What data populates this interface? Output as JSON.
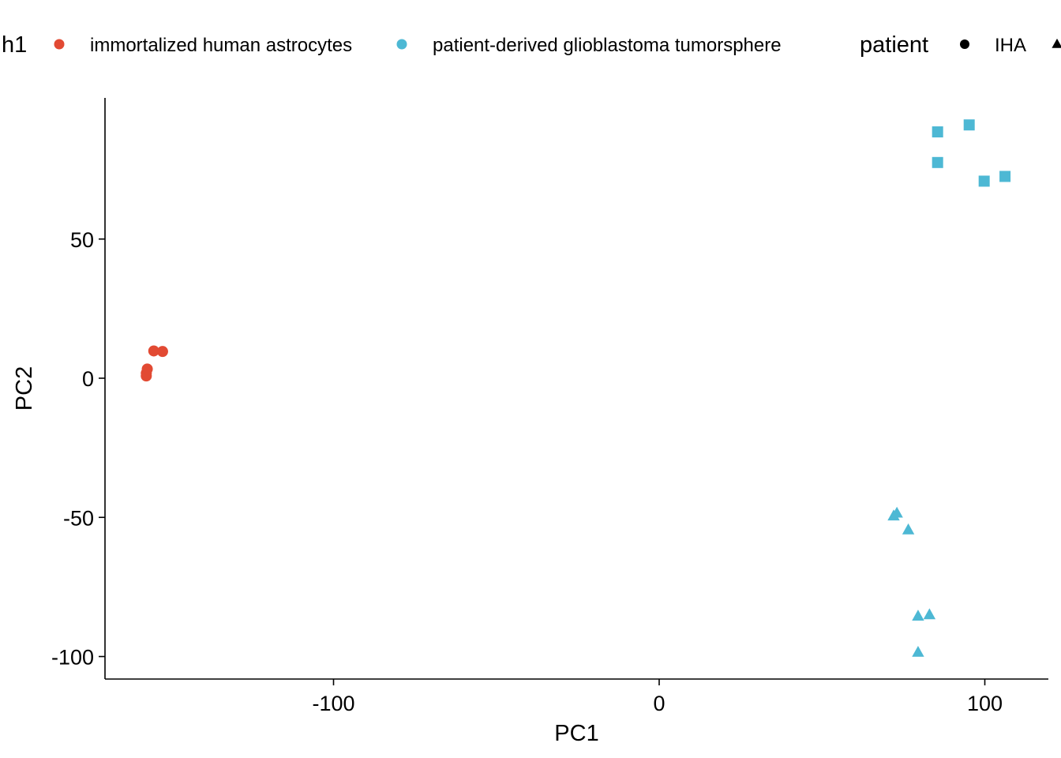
{
  "chart_data": {
    "type": "scatter",
    "xlabel": "PC1",
    "ylabel": "PC2",
    "xlim": [
      -170,
      120
    ],
    "ylim": [
      -108,
      100
    ],
    "x_ticks": [
      {
        "value": -100,
        "label": "-100"
      },
      {
        "value": 0,
        "label": "0"
      },
      {
        "value": 100,
        "label": "100"
      }
    ],
    "y_ticks": [
      {
        "value": 50,
        "label": "50"
      },
      {
        "value": 0,
        "label": "0"
      },
      {
        "value": -50,
        "label": "-50"
      },
      {
        "value": -100,
        "label": "-100"
      }
    ],
    "grid": false,
    "legend_position": "top",
    "legend": {
      "color_title": "h1",
      "color_entries": [
        {
          "label": "immortalized human astrocytes",
          "color": "#E24A33"
        },
        {
          "label": "patient-derived glioblastoma tumorsphere",
          "color": "#4DB8D4"
        }
      ],
      "shape_title": "patient",
      "shape_entries": [
        {
          "label": "IHA",
          "shape": "circle"
        },
        {
          "label": "",
          "shape": "triangle"
        }
      ]
    },
    "series": [
      {
        "group": "immortalized human astrocytes",
        "patient": "IHA",
        "shape": "circle",
        "color": "#E24A33",
        "points": [
          {
            "x": -157.5,
            "y": 0.8
          },
          {
            "x": -157.5,
            "y": 1.8
          },
          {
            "x": -157.2,
            "y": 3.3
          },
          {
            "x": -155.2,
            "y": 9.8
          },
          {
            "x": -152.5,
            "y": 9.6
          }
        ]
      },
      {
        "group": "patient-derived glioblastoma tumorsphere",
        "shape": "square",
        "color": "#4DB8D4",
        "points": [
          {
            "x": 85.5,
            "y": 88.5
          },
          {
            "x": 95.2,
            "y": 91.0
          },
          {
            "x": 85.5,
            "y": 77.5
          },
          {
            "x": 99.8,
            "y": 70.8
          },
          {
            "x": 106.2,
            "y": 72.5
          }
        ]
      },
      {
        "group": "patient-derived glioblastoma tumorsphere",
        "shape": "triangle",
        "color": "#4DB8D4",
        "points": [
          {
            "x": 72.0,
            "y": -49.5
          },
          {
            "x": 73.0,
            "y": -48.5
          },
          {
            "x": 76.5,
            "y": -54.5
          },
          {
            "x": 79.5,
            "y": -85.5
          },
          {
            "x": 83.0,
            "y": -85.0
          },
          {
            "x": 79.5,
            "y": -98.5
          }
        ]
      }
    ]
  }
}
